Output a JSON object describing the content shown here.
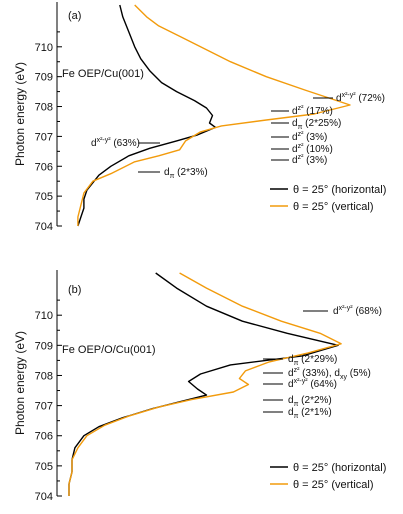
{
  "chart_data": [
    {
      "type": "line",
      "panel_label": "(a)",
      "sample_label": "Fe OEP/Cu(001)",
      "ylabel": "Photon energy (eV)",
      "ylim": [
        704,
        711.5
      ],
      "yticks": [
        "704",
        "705",
        "706",
        "707",
        "708",
        "709",
        "710"
      ],
      "series": [
        {
          "name": "θ = 25° (horizontal)",
          "color": "#000000",
          "points": [
            [
              0.21,
              711.4
            ],
            [
              0.22,
              711.0
            ],
            [
              0.24,
              710.5
            ],
            [
              0.26,
              710.0
            ],
            [
              0.28,
              709.6
            ],
            [
              0.31,
              709.2
            ],
            [
              0.35,
              708.8
            ],
            [
              0.4,
              708.5
            ],
            [
              0.46,
              708.2
            ],
            [
              0.5,
              707.95
            ],
            [
              0.52,
              707.7
            ],
            [
              0.51,
              707.45
            ],
            [
              0.53,
              707.3
            ],
            [
              0.47,
              707.05
            ],
            [
              0.4,
              706.85
            ],
            [
              0.31,
              706.6
            ],
            [
              0.24,
              706.35
            ],
            [
              0.18,
              706.0
            ],
            [
              0.14,
              705.7
            ],
            [
              0.12,
              705.45
            ],
            [
              0.1,
              705.2
            ],
            [
              0.09,
              704.9
            ],
            [
              0.09,
              704.6
            ],
            [
              0.08,
              704.3
            ],
            [
              0.07,
              704.0
            ]
          ]
        },
        {
          "name": "θ = 25° (vertical)",
          "color": "#f29b0c",
          "points": [
            [
              0.26,
              711.4
            ],
            [
              0.3,
              711.0
            ],
            [
              0.34,
              710.7
            ],
            [
              0.42,
              710.3
            ],
            [
              0.5,
              709.9
            ],
            [
              0.58,
              709.5
            ],
            [
              0.7,
              709.0
            ],
            [
              0.83,
              708.55
            ],
            [
              0.98,
              708.05
            ],
            [
              0.86,
              707.75
            ],
            [
              0.7,
              707.55
            ],
            [
              0.55,
              707.35
            ],
            [
              0.48,
              707.15
            ],
            [
              0.43,
              706.85
            ],
            [
              0.41,
              706.55
            ],
            [
              0.34,
              706.35
            ],
            [
              0.26,
              706.15
            ],
            [
              0.18,
              705.75
            ],
            [
              0.12,
              705.5
            ],
            [
              0.09,
              705.1
            ],
            [
              0.08,
              704.7
            ],
            [
              0.07,
              704.3
            ],
            [
              0.07,
              704.0
            ]
          ]
        }
      ],
      "annotations": [
        {
          "base": "d",
          "sup": "x²-y²",
          "rest": " (72%)",
          "e": 708.0
        },
        {
          "base": "d",
          "sup": "z²",
          "rest": " (17%)",
          "e": 707.6
        },
        {
          "base": "d",
          "sub": "π",
          "rest": " (2*25%)",
          "e": 707.3
        },
        {
          "base": "d",
          "sup": "z²",
          "rest": " (3%)",
          "e": 706.95
        },
        {
          "base": "d",
          "sup": "z²",
          "rest": " (10%)",
          "e": 706.6
        },
        {
          "base": "d",
          "sup": "z²",
          "rest": " (3%)",
          "e": 706.2
        },
        {
          "base": "d",
          "sup": "x²-y²",
          "rest": " (63%)",
          "e": 707.1
        },
        {
          "base": "d",
          "sub": "π",
          "rest": " (2*3%)",
          "e": 705.7
        }
      ]
    },
    {
      "type": "line",
      "panel_label": "(b)",
      "sample_label": "Fe OEP/O/Cu(001)",
      "ylabel": "Photon energy (eV)",
      "ylim": [
        704,
        711.5
      ],
      "yticks": [
        "704",
        "705",
        "706",
        "707",
        "708",
        "709",
        "710"
      ],
      "series": [
        {
          "name": "θ = 25° (horizontal)",
          "color": "#000000",
          "points": [
            [
              0.33,
              711.4
            ],
            [
              0.4,
              710.9
            ],
            [
              0.5,
              710.3
            ],
            [
              0.62,
              709.8
            ],
            [
              0.77,
              709.4
            ],
            [
              0.94,
              709.0
            ],
            [
              0.82,
              708.65
            ],
            [
              0.58,
              708.35
            ],
            [
              0.48,
              708.05
            ],
            [
              0.44,
              707.8
            ],
            [
              0.47,
              707.55
            ],
            [
              0.5,
              707.35
            ],
            [
              0.42,
              707.15
            ],
            [
              0.32,
              706.9
            ],
            [
              0.22,
              706.6
            ],
            [
              0.14,
              706.3
            ],
            [
              0.09,
              706.0
            ],
            [
              0.06,
              705.6
            ],
            [
              0.05,
              705.2
            ],
            [
              0.05,
              704.8
            ],
            [
              0.04,
              704.4
            ],
            [
              0.04,
              704.0
            ]
          ]
        },
        {
          "name": "θ = 25° (vertical)",
          "color": "#f29b0c",
          "points": [
            [
              0.41,
              711.4
            ],
            [
              0.5,
              710.9
            ],
            [
              0.62,
              710.3
            ],
            [
              0.75,
              709.8
            ],
            [
              0.88,
              709.4
            ],
            [
              0.95,
              709.05
            ],
            [
              0.84,
              708.75
            ],
            [
              0.71,
              708.45
            ],
            [
              0.63,
              708.15
            ],
            [
              0.61,
              707.9
            ],
            [
              0.64,
              707.7
            ],
            [
              0.59,
              707.45
            ],
            [
              0.45,
              707.2
            ],
            [
              0.34,
              706.95
            ],
            [
              0.24,
              706.65
            ],
            [
              0.16,
              706.35
            ],
            [
              0.1,
              706.0
            ],
            [
              0.07,
              705.6
            ],
            [
              0.05,
              705.2
            ],
            [
              0.05,
              704.8
            ],
            [
              0.04,
              704.4
            ],
            [
              0.04,
              704.0
            ]
          ]
        }
      ],
      "annotations": [
        {
          "base": "d",
          "sup": "x²-y²",
          "rest": " (68%)",
          "e": 709.05
        },
        {
          "base": "d",
          "sub": "π",
          "rest": " (2*29%)",
          "e": 708.4
        },
        {
          "base": "d",
          "sup": "z²",
          "rest": " (33%), d",
          "sub2": "xy",
          "rest2": " (5%)",
          "e": 708.0
        },
        {
          "base": "d",
          "sup": "x²-y²",
          "rest": " (64%)",
          "e": 707.7
        },
        {
          "base": "d",
          "sub": "π",
          "rest": " (2*2%)",
          "e": 707.05
        },
        {
          "base": "d",
          "sub": "π",
          "rest": " (2*1%)",
          "e": 706.9
        }
      ]
    }
  ]
}
